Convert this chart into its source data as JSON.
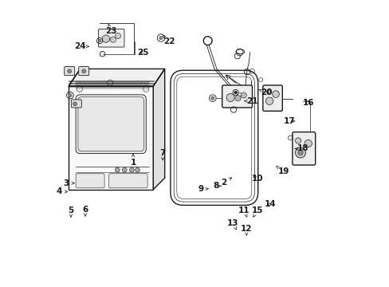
{
  "bg_color": "#ffffff",
  "line_color": "#1a1a1a",
  "label_color": "#1a1a1a",
  "label_fs": 7.5,
  "lw_main": 1.0,
  "lw_thin": 0.6,
  "parts_labels": {
    "1": [
      0.285,
      0.535,
      0.0,
      -0.032
    ],
    "2": [
      0.63,
      0.618,
      -0.03,
      -0.018
    ],
    "3": [
      0.082,
      0.638,
      -0.03,
      0.0
    ],
    "4": [
      0.058,
      0.668,
      -0.032,
      0.0
    ],
    "5": [
      0.068,
      0.758,
      0.0,
      0.025
    ],
    "6": [
      0.118,
      0.755,
      0.0,
      0.025
    ],
    "7": [
      0.388,
      0.56,
      0.0,
      0.028
    ],
    "8": [
      0.592,
      0.648,
      -0.018,
      0.0
    ],
    "9": [
      0.548,
      0.658,
      -0.028,
      0.0
    ],
    "10": [
      0.695,
      0.612,
      0.022,
      -0.01
    ],
    "11": [
      0.682,
      0.758,
      -0.01,
      0.025
    ],
    "12": [
      0.68,
      0.822,
      0.0,
      0.025
    ],
    "13": [
      0.645,
      0.802,
      -0.012,
      0.025
    ],
    "14": [
      0.742,
      0.712,
      0.022,
      0.0
    ],
    "15": [
      0.702,
      0.758,
      0.016,
      0.025
    ],
    "16": [
      0.875,
      0.348,
      0.022,
      -0.01
    ],
    "17": [
      0.858,
      0.422,
      -0.028,
      0.0
    ],
    "18": [
      0.848,
      0.518,
      0.028,
      0.0
    ],
    "19": [
      0.782,
      0.578,
      0.028,
      -0.02
    ],
    "20": [
      0.722,
      0.312,
      0.028,
      -0.01
    ],
    "21": [
      0.672,
      0.352,
      0.028,
      0.0
    ],
    "22": [
      0.388,
      0.122,
      0.022,
      -0.022
    ],
    "23": [
      0.198,
      0.082,
      0.01,
      -0.026
    ],
    "24": [
      0.132,
      0.162,
      -0.032,
      0.0
    ],
    "25": [
      0.298,
      0.182,
      0.022,
      0.0
    ]
  }
}
